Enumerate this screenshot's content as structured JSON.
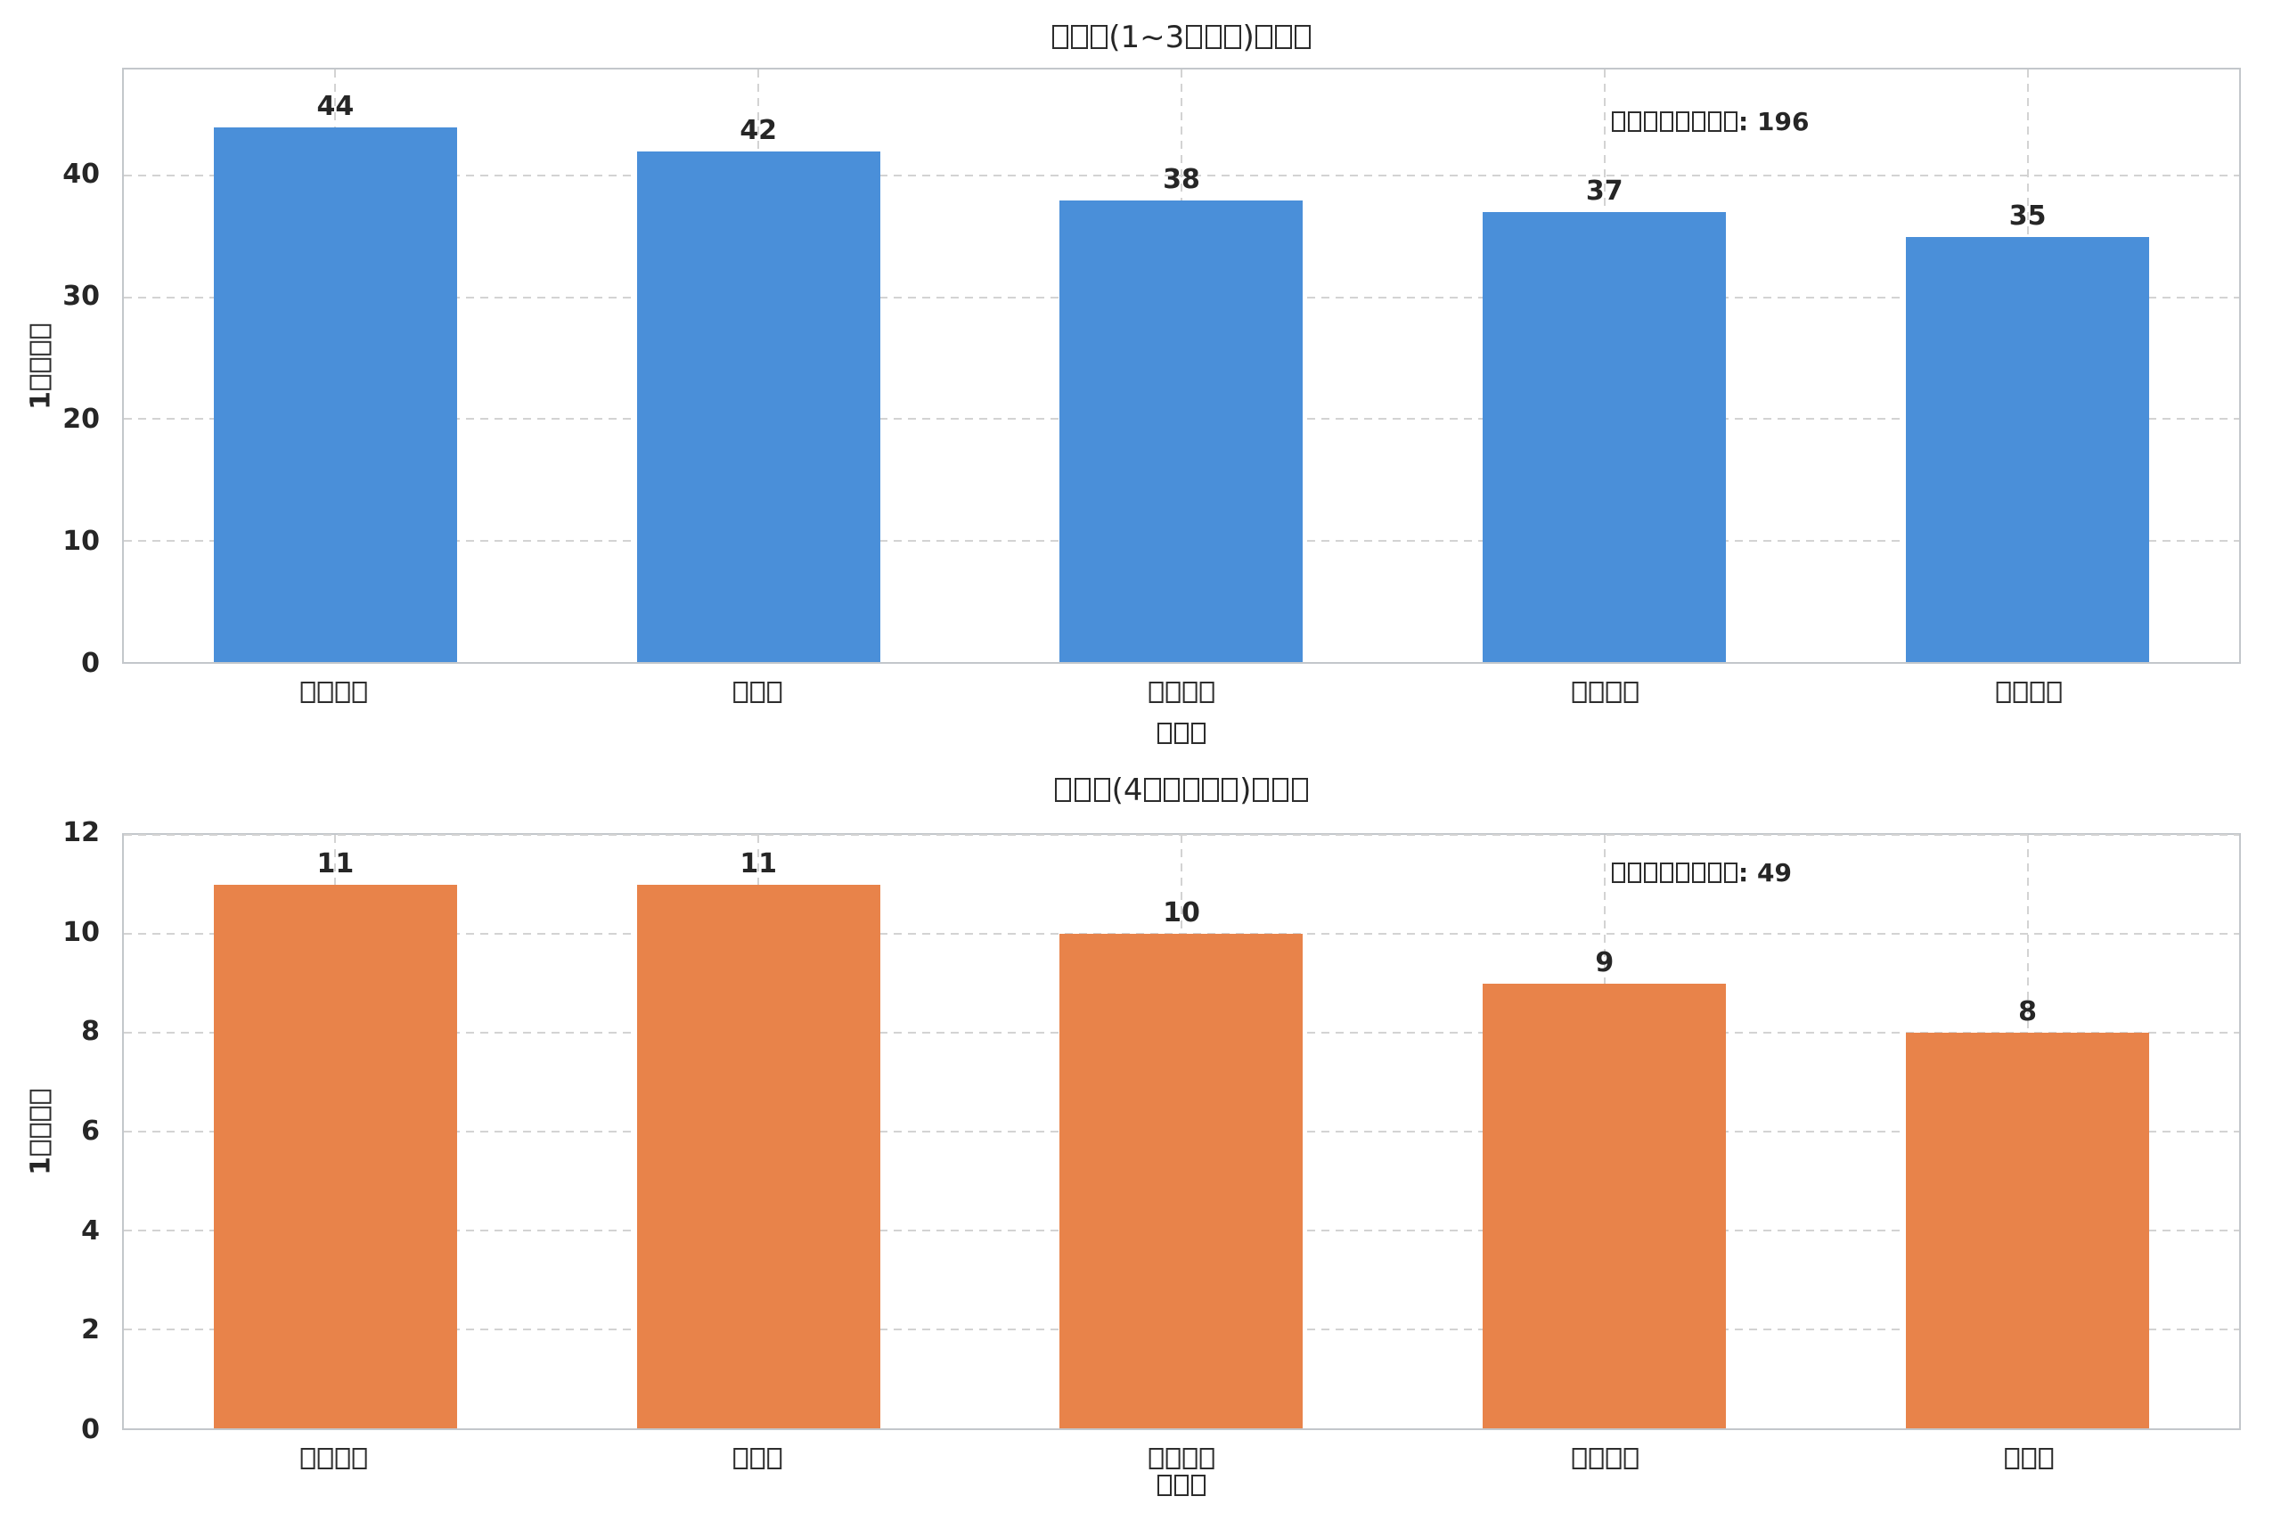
{
  "render_note": "Figure with two bar subplots; non-ASCII (CJK) characters are rendered as missing-glyph boxes shown here as □",
  "colors": {
    "background": "#ffffff",
    "text": "#262626",
    "spine": "#c3c7cb",
    "grid": "#d3d3d3",
    "bar_blue": "#4a8fd9",
    "bar_orange": "#e8834a"
  },
  "chart_data": [
    {
      "type": "bar",
      "title": "□□□(1~3□□□)□□□",
      "xlabel": "□□□",
      "ylabel": "1□□□□",
      "categories": [
        "□□□□",
        "□□□",
        "□□□□",
        "□□□□",
        "□□□□"
      ],
      "values": [
        44,
        42,
        38,
        37,
        35
      ],
      "annotation": "□□□□□□□□: 196",
      "yticks": [
        0,
        10,
        20,
        30,
        40
      ],
      "ylim": [
        0,
        48.75
      ],
      "bar_color": "#4a8fd9",
      "grid": "dashed, horizontal and vertical",
      "legend": false
    },
    {
      "type": "bar",
      "title": "□□□(4□□□□□)□□□",
      "xlabel": "□□□",
      "ylabel": "1□□□□",
      "categories": [
        "□□□□",
        "□□□",
        "□□□□",
        "□□□□",
        "□□□"
      ],
      "values": [
        11,
        11,
        10,
        9,
        8
      ],
      "annotation": "□□□□□□□□: 49",
      "yticks": [
        0,
        2,
        4,
        6,
        8,
        10,
        12
      ],
      "ylim": [
        0,
        12
      ],
      "bar_color": "#e8834a",
      "grid": "dashed, horizontal and vertical",
      "legend": false
    }
  ]
}
